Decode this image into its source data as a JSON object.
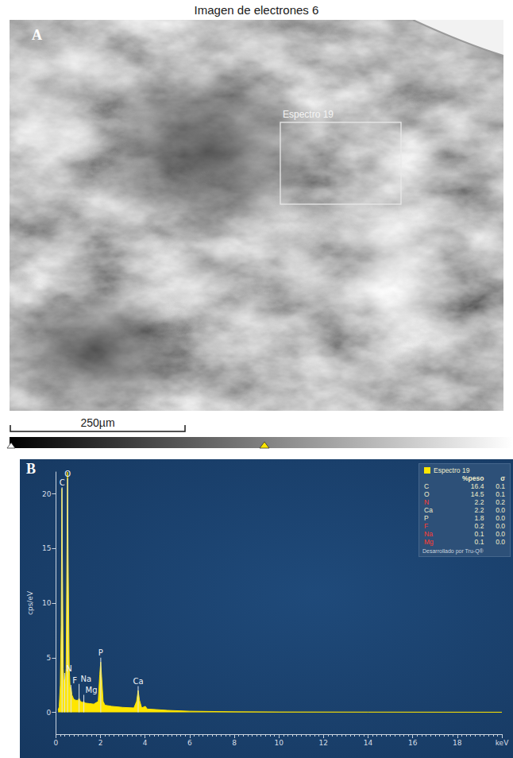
{
  "panel_a": {
    "label": "A",
    "title": "Imagen de electrones 6",
    "region": "Espectro 19",
    "scale_bar": "250µm"
  },
  "chart_data": {
    "type": "line",
    "panel_label": "B",
    "y_label": "cps/eV",
    "x": [
      0.1,
      0.15,
      0.2,
      0.24,
      0.27,
      0.3,
      0.33,
      0.36,
      0.39,
      0.42,
      0.46,
      0.5,
      0.525,
      0.55,
      0.6,
      0.64,
      0.68,
      0.72,
      0.8,
      0.9,
      1.0,
      1.04,
      1.1,
      1.2,
      1.25,
      1.3,
      1.5,
      1.7,
      1.9,
      1.97,
      2.01,
      2.05,
      2.12,
      2.2,
      2.5,
      3.0,
      3.5,
      3.62,
      3.69,
      3.75,
      3.85,
      4.01,
      4.1,
      4.5,
      5,
      6,
      8,
      10,
      14,
      20
    ],
    "series": [
      {
        "name": "Espectro 19",
        "color": "#ffe600",
        "values": [
          0.2,
          0.5,
          2.5,
          8,
          20.5,
          12,
          4,
          2.8,
          3.0,
          2.6,
          4,
          15,
          22,
          14,
          4,
          2.2,
          2.3,
          1.6,
          1.2,
          1.1,
          1.1,
          1.3,
          1.0,
          0.9,
          1.0,
          0.85,
          0.8,
          0.75,
          1.0,
          3.5,
          4.6,
          3.3,
          1.0,
          0.65,
          0.55,
          0.45,
          0.4,
          1.0,
          2.0,
          1.1,
          0.4,
          0.55,
          0.3,
          0.25,
          0.18,
          0.1,
          0.05,
          0.03,
          0.02,
          0.01
        ]
      }
    ],
    "peak_labels": [
      {
        "label": "C",
        "x": 0.277,
        "y": 20.6
      },
      {
        "label": "O",
        "x": 0.525,
        "y": 21.4
      },
      {
        "label": "N",
        "x": 0.392,
        "y": 3.6
      },
      {
        "label": "F",
        "x": 0.677,
        "y": 2.5
      },
      {
        "label": "Na",
        "x": 1.041,
        "y": 2.6
      },
      {
        "label": "Mg",
        "x": 1.254,
        "y": 1.6
      },
      {
        "label": "P",
        "x": 2.013,
        "y": 5.0
      },
      {
        "label": "Ca",
        "x": 3.69,
        "y": 2.4
      }
    ],
    "xlim": [
      0,
      20
    ],
    "xticks": [
      0,
      2,
      4,
      6,
      8,
      10,
      12,
      14,
      16,
      18,
      {
        "value": 20,
        "label": "keV"
      }
    ],
    "ylim": [
      -2,
      22
    ],
    "yticks": [
      0,
      5,
      10,
      15,
      20
    ],
    "grid": false,
    "legend": "top-right",
    "table": {
      "columns": [
        "%peso",
        "σ"
      ],
      "rows": [
        {
          "element": "C",
          "peso": "16.4",
          "sigma": "0.1",
          "color": "#f0eecb"
        },
        {
          "element": "O",
          "peso": "14.5",
          "sigma": "0.1",
          "color": "#f0eecb"
        },
        {
          "element": "N",
          "peso": "2.2",
          "sigma": "0.2",
          "color": "#ff3b30"
        },
        {
          "element": "Ca",
          "peso": "2.2",
          "sigma": "0.0",
          "color": "#f0eecb"
        },
        {
          "element": "P",
          "peso": "1.8",
          "sigma": "0.0",
          "color": "#f0eecb"
        },
        {
          "element": "F",
          "peso": "0.2",
          "sigma": "0.0",
          "color": "#ff3b30"
        },
        {
          "element": "Na",
          "peso": "0.1",
          "sigma": "0.0",
          "color": "#ff3b30"
        },
        {
          "element": "Mg",
          "peso": "0.1",
          "sigma": "0.0",
          "color": "#ff3b30"
        }
      ],
      "footer": "Desarrollado por Tru-Q®"
    }
  }
}
